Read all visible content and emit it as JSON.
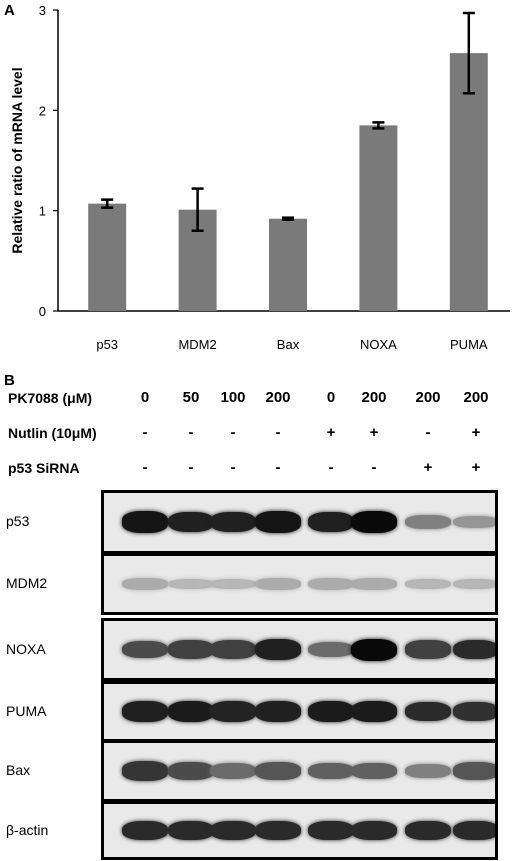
{
  "panel_a": {
    "label": "A",
    "chart_data": {
      "type": "bar",
      "categories": [
        "p53",
        "MDM2",
        "Bax",
        "NOXA",
        "PUMA"
      ],
      "values": [
        1.07,
        1.01,
        0.92,
        1.85,
        2.57
      ],
      "errors": [
        0.04,
        0.21,
        0.01,
        0.03,
        0.4
      ],
      "ylabel": "Relative ratio of mRNA level",
      "xlabel": "",
      "ylim": [
        0,
        3
      ],
      "yticks": [
        "0",
        "1",
        "2",
        "3"
      ],
      "bar_color": "#7a7a7a",
      "grid": false
    }
  },
  "panel_b": {
    "label": "B",
    "conditions": [
      {
        "label": "PK7088 (μM)",
        "values": [
          "0",
          "50",
          "100",
          "200",
          "0",
          "200",
          "200",
          "200"
        ]
      },
      {
        "label": "Nutlin (10μM)",
        "values": [
          "-",
          "-",
          "-",
          "-",
          "+",
          "+",
          "-",
          "+"
        ]
      },
      {
        "label": "p53 SiRNA",
        "values": [
          "-",
          "-",
          "-",
          "-",
          "-",
          "-",
          "+",
          "+"
        ]
      }
    ],
    "blots": [
      {
        "label": "p53",
        "intensities": [
          0.95,
          0.9,
          0.9,
          0.95,
          0.9,
          1.0,
          0.45,
          0.35
        ]
      },
      {
        "label": "MDM2",
        "intensities": [
          0.25,
          0.2,
          0.2,
          0.25,
          0.25,
          0.25,
          0.2,
          0.2
        ]
      },
      {
        "label": "NOXA",
        "intensities": [
          0.7,
          0.75,
          0.75,
          0.9,
          0.55,
          1.0,
          0.75,
          0.85
        ]
      },
      {
        "label": "PUMA",
        "intensities": [
          0.9,
          0.92,
          0.88,
          0.9,
          0.92,
          0.92,
          0.85,
          0.82
        ]
      },
      {
        "label": "Bax",
        "intensities": [
          0.8,
          0.7,
          0.55,
          0.65,
          0.6,
          0.6,
          0.45,
          0.65
        ]
      },
      {
        "label": "β-actin",
        "intensities": [
          0.85,
          0.85,
          0.85,
          0.85,
          0.85,
          0.85,
          0.85,
          0.85
        ]
      }
    ]
  }
}
